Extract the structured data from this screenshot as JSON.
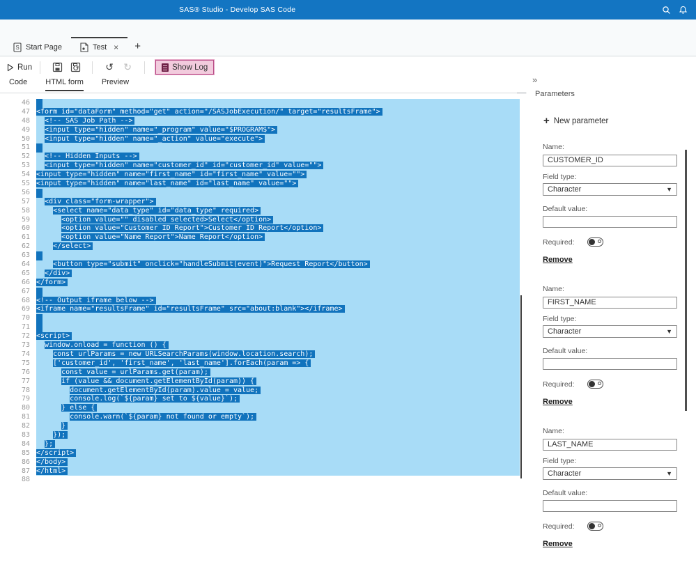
{
  "topbar": {
    "title": "SAS® Studio - Develop SAS Code"
  },
  "tabs": {
    "start_page": "Start Page",
    "test": "Test",
    "close": "×",
    "new_tab": "+"
  },
  "toolbar": {
    "run": "Run",
    "show_log": "Show Log"
  },
  "subtabs": {
    "code": "Code",
    "html_form": "HTML form",
    "preview": "Preview"
  },
  "panel": {
    "collapse": "»",
    "title": "Parameters",
    "new_parameter": "New parameter",
    "labels": {
      "name": "Name:",
      "field_type": "Field type:",
      "default_value": "Default value:",
      "required": "Required:"
    },
    "remove": "Remove",
    "cards": [
      {
        "name": "CUSTOMER_ID",
        "field_type": "Character",
        "default_value": "",
        "required_on": true
      },
      {
        "name": "FIRST_NAME",
        "field_type": "Character",
        "default_value": "",
        "required_on": true
      },
      {
        "name": "LAST_NAME",
        "field_type": "Character",
        "default_value": "",
        "required_on": true
      }
    ]
  },
  "colors": {
    "topbar_blue": "#1375C2",
    "selection_dark": "#1173BD",
    "selection_light": "#A8DCF7",
    "showlog_bg": "#F2CBDD",
    "showlog_border": "#B94B86"
  },
  "editor": {
    "lines": [
      {
        "n": 46,
        "text": "",
        "sel": true
      },
      {
        "n": 47,
        "text": "<form id=\"dataForm\" method=\"get\" action=\"/SASJobExecution/\" target=\"resultsFrame\">",
        "sel": true
      },
      {
        "n": 48,
        "text": "  <!-- SAS Job Path -->",
        "sel": true
      },
      {
        "n": 49,
        "text": "  <input type=\"hidden\" name=\"_program\" value=\"$PROGRAM$\">",
        "sel": true
      },
      {
        "n": 50,
        "text": "  <input type=\"hidden\" name=\"_action\" value=\"execute\">",
        "sel": true
      },
      {
        "n": 51,
        "text": "",
        "sel": true
      },
      {
        "n": 52,
        "text": "  <!-- Hidden Inputs -->",
        "sel": true
      },
      {
        "n": 53,
        "text": "  <input type=\"hidden\" name=\"customer_id\" id=\"customer_id\" value=\"\">",
        "sel": true
      },
      {
        "n": 54,
        "text": "<input type=\"hidden\" name=\"first_name\" id=\"first_name\" value=\"\">",
        "sel": true
      },
      {
        "n": 55,
        "text": "<input type=\"hidden\" name=\"last_name\" id=\"last_name\" value=\"\">",
        "sel": true
      },
      {
        "n": 56,
        "text": "",
        "sel": true
      },
      {
        "n": 57,
        "text": "  <div class=\"form-wrapper\">",
        "sel": true
      },
      {
        "n": 58,
        "text": "    <select name=\"data_type\" id=\"data_type\" required>",
        "sel": true
      },
      {
        "n": 59,
        "text": "      <option value=\"\" disabled selected>Select</option>",
        "sel": true
      },
      {
        "n": 60,
        "text": "      <option value=\"Customer ID Report\">Customer ID Report</option>",
        "sel": true
      },
      {
        "n": 61,
        "text": "      <option value=\"Name Report\">Name Report</option>",
        "sel": true
      },
      {
        "n": 62,
        "text": "    </select>",
        "sel": true
      },
      {
        "n": 63,
        "text": "",
        "sel": true
      },
      {
        "n": 64,
        "text": "    <button type=\"submit\" onclick=\"handleSubmit(event)\">Request Report</button>",
        "sel": true
      },
      {
        "n": 65,
        "text": "  </div>",
        "sel": true
      },
      {
        "n": 66,
        "text": "</form>",
        "sel": true
      },
      {
        "n": 67,
        "text": "",
        "sel": true
      },
      {
        "n": 68,
        "text": "<!-- Output iframe below -->",
        "sel": true
      },
      {
        "n": 69,
        "text": "<iframe name=\"resultsFrame\" id=\"resultsFrame\" src=\"about:blank\"></iframe>",
        "sel": true
      },
      {
        "n": 70,
        "text": "",
        "sel": true
      },
      {
        "n": 71,
        "text": "",
        "sel": true
      },
      {
        "n": 72,
        "text": "<script>",
        "sel": true
      },
      {
        "n": 73,
        "text": "  window.onload = function () {",
        "sel": true
      },
      {
        "n": 74,
        "text": "    const urlParams = new URLSearchParams(window.location.search);",
        "sel": true
      },
      {
        "n": 75,
        "text": "    ['customer_id', 'first_name', 'last_name'].forEach(param => {",
        "sel": true
      },
      {
        "n": 76,
        "text": "      const value = urlParams.get(param);",
        "sel": true
      },
      {
        "n": 77,
        "text": "      if (value && document.getElementById(param)) {",
        "sel": true
      },
      {
        "n": 78,
        "text": "        document.getElementById(param).value = value;",
        "sel": true
      },
      {
        "n": 79,
        "text": "        console.log(`${param} set to ${value}`);",
        "sel": true
      },
      {
        "n": 80,
        "text": "      } else {",
        "sel": true
      },
      {
        "n": 81,
        "text": "        console.warn(`${param} not found or empty`);",
        "sel": true
      },
      {
        "n": 82,
        "text": "      }",
        "sel": true
      },
      {
        "n": 83,
        "text": "    });",
        "sel": true
      },
      {
        "n": 84,
        "text": "  };",
        "sel": true
      },
      {
        "n": 85,
        "text": "</script>",
        "sel": true
      },
      {
        "n": 86,
        "text": "</body>",
        "sel": true
      },
      {
        "n": 87,
        "text": "</html>",
        "sel": true
      },
      {
        "n": 88,
        "text": "",
        "sel": false
      }
    ]
  }
}
